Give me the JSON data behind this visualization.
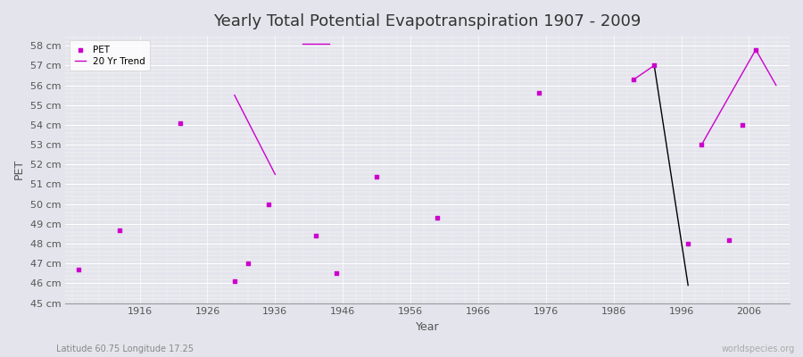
{
  "title": "Yearly Total Potential Evapotranspiration 1907 - 2009",
  "xlabel": "Year",
  "ylabel": "PET",
  "footer_left": "Latitude 60.75 Longitude 17.25",
  "footer_right": "worldspecies.org",
  "ylim": [
    45,
    58.5
  ],
  "xlim": [
    1905,
    2012
  ],
  "yticks": [
    45,
    46,
    47,
    48,
    49,
    50,
    51,
    52,
    53,
    54,
    55,
    56,
    57,
    58
  ],
  "ytick_labels": [
    "45 cm",
    "46 cm",
    "47 cm",
    "48 cm",
    "49 cm",
    "50 cm",
    "51 cm",
    "52 cm",
    "53 cm",
    "54 cm",
    "55 cm",
    "56 cm",
    "57 cm",
    "58 cm"
  ],
  "xticks": [
    1916,
    1926,
    1936,
    1946,
    1956,
    1966,
    1976,
    1986,
    1996,
    2006
  ],
  "pet_years": [
    1907,
    1913,
    1922,
    1930,
    1932,
    1935,
    1942,
    1945,
    1951,
    1960,
    1975,
    1989,
    1992,
    1997,
    1999,
    2003,
    2005,
    2007
  ],
  "pet_values": [
    46.7,
    48.7,
    54.1,
    46.1,
    47.0,
    50.0,
    48.4,
    46.5,
    51.4,
    49.3,
    55.6,
    56.3,
    57.0,
    48.0,
    53.0,
    48.2,
    54.0,
    57.8
  ],
  "trend_segments": [
    {
      "x": [
        1930,
        1936
      ],
      "y": [
        55.5,
        51.5
      ],
      "color": "#CC00CC"
    },
    {
      "x": [
        1940,
        1944
      ],
      "y": [
        58.1,
        58.1
      ],
      "color": "#CC00CC"
    },
    {
      "x": [
        1989,
        1992
      ],
      "y": [
        56.3,
        57.0
      ],
      "color": "#CC00CC"
    },
    {
      "x": [
        1992,
        1997
      ],
      "y": [
        57.0,
        45.9
      ],
      "color": "#000000"
    },
    {
      "x": [
        1999,
        2007
      ],
      "y": [
        53.0,
        57.8
      ],
      "color": "#CC00CC"
    },
    {
      "x": [
        2007,
        2010
      ],
      "y": [
        57.8,
        56.0
      ],
      "color": "#CC00CC"
    }
  ],
  "pet_color": "#CC00CC",
  "trend_color": "#CC00CC",
  "bg_color": "#E4E4EC",
  "plot_bg_color": "#E4E4EC",
  "grid_color": "#FFFFFF",
  "legend_bg": "#FFFFFF",
  "title_fontsize": 13,
  "tick_fontsize": 8,
  "axis_label_fontsize": 9,
  "footer_fontsize": 7
}
